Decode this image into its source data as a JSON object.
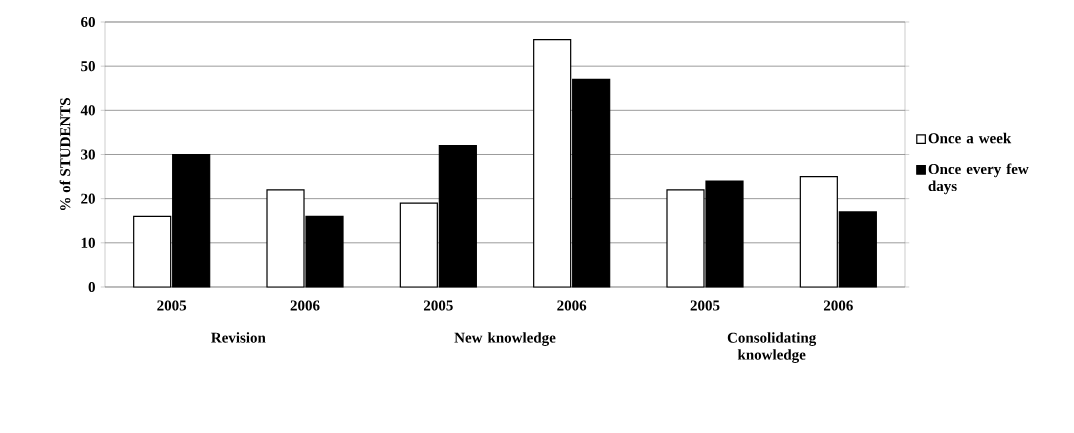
{
  "chart_data": {
    "type": "bar",
    "ylabel": "% of STUDENTS",
    "categories": [
      "2005",
      "2006",
      "2005",
      "2006",
      "2005",
      "2006"
    ],
    "series": [
      {
        "name": "Once a week",
        "color": "#ffffff",
        "values": [
          16,
          22,
          19,
          56,
          22,
          25
        ]
      },
      {
        "name": "Once every few days",
        "color": "#000000",
        "values": [
          30,
          16,
          32,
          47,
          24,
          17
        ]
      }
    ],
    "annotations": [
      "Revision",
      "New knowledge",
      "Consolidating knowledge"
    ],
    "ylim": [
      0,
      60
    ],
    "yticks": [
      0,
      10,
      20,
      30,
      40,
      50,
      60
    ],
    "grid": "y",
    "legend": "right"
  }
}
